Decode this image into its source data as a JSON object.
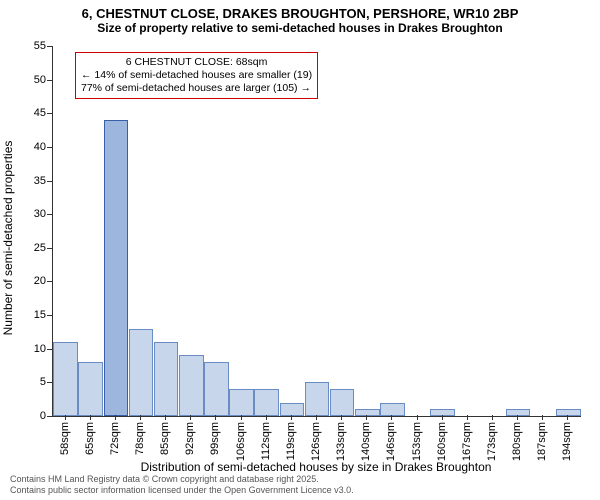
{
  "title_line1": "6, CHESTNUT CLOSE, DRAKES BROUGHTON, PERSHORE, WR10 2BP",
  "title_line2": "Size of property relative to semi-detached houses in Drakes Broughton",
  "y_axis_label": "Number of semi-detached properties",
  "x_axis_label": "Distribution of semi-detached houses by size in Drakes Broughton",
  "footer_line1": "Contains HM Land Registry data © Crown copyright and database right 2025.",
  "footer_line2": "Contains public sector information licensed under the Open Government Licence v3.0.",
  "annotation": {
    "line1": "6 CHESTNUT CLOSE: 68sqm",
    "line2": "← 14% of semi-detached houses are smaller (19)",
    "line3": "77% of semi-detached houses are larger (105) →",
    "border_color": "#cc0000"
  },
  "chart": {
    "type": "histogram",
    "ylim": [
      0,
      55
    ],
    "ytick_step": 5,
    "xlim": [
      55,
      198
    ],
    "x_tick_start": 58,
    "x_tick_step": 6.74,
    "x_tick_unit": "sqm",
    "bar_fill": "#c8d6ec",
    "bar_border": "#6a8cc4",
    "highlight_fill": "#9db6dd",
    "highlight_border": "#3a5fa8",
    "background_color": "#ffffff",
    "categories": [
      "58sqm",
      "65sqm",
      "72sqm",
      "78sqm",
      "85sqm",
      "92sqm",
      "99sqm",
      "106sqm",
      "112sqm",
      "119sqm",
      "126sqm",
      "133sqm",
      "140sqm",
      "146sqm",
      "153sqm",
      "160sqm",
      "167sqm",
      "173sqm",
      "180sqm",
      "187sqm",
      "194sqm"
    ],
    "values": [
      11,
      8,
      44,
      13,
      11,
      9,
      8,
      4,
      4,
      2,
      5,
      4,
      1,
      2,
      0,
      1,
      0,
      0,
      1,
      0,
      1
    ],
    "highlight_index": 2
  }
}
